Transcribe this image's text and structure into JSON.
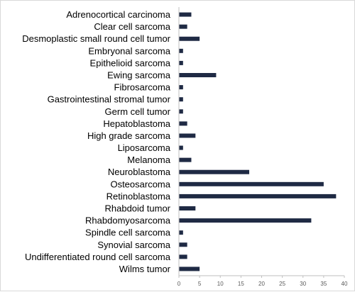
{
  "chart_data": {
    "type": "bar",
    "orientation": "horizontal",
    "title": "",
    "xlabel": "",
    "ylabel": "",
    "categories": [
      "Adrenocortical carcinoma",
      "Clear cell sarcoma",
      "Desmoplastic small round cell tumor",
      "Embryonal sarcoma",
      "Epithelioid sarcoma",
      "Ewing sarcoma",
      "Fibrosarcoma",
      "Gastrointestinal stromal tumor",
      "Germ cell tumor",
      "Hepatoblastoma",
      "High grade sarcoma",
      "Liposarcoma",
      "Melanoma",
      "Neuroblastoma",
      "Osteosarcoma",
      "Retinoblastoma",
      "Rhabdoid tumor",
      "Rhabdomyosarcoma",
      "Spindle cell sarcoma",
      "Synovial sarcoma",
      "Undifferentiated round cell sarcoma",
      "Wilms tumor"
    ],
    "values": [
      3,
      2,
      5,
      1,
      1,
      9,
      1,
      1,
      1,
      2,
      4,
      1,
      3,
      17,
      35,
      38,
      4,
      32,
      1,
      2,
      2,
      5
    ],
    "xlim": [
      0,
      40
    ],
    "x_ticks": [
      "0",
      "5",
      "10",
      "15",
      "20",
      "25",
      "30",
      "35",
      "40"
    ],
    "grid": false,
    "legend": "none",
    "bar_color": "#1f2a44"
  }
}
